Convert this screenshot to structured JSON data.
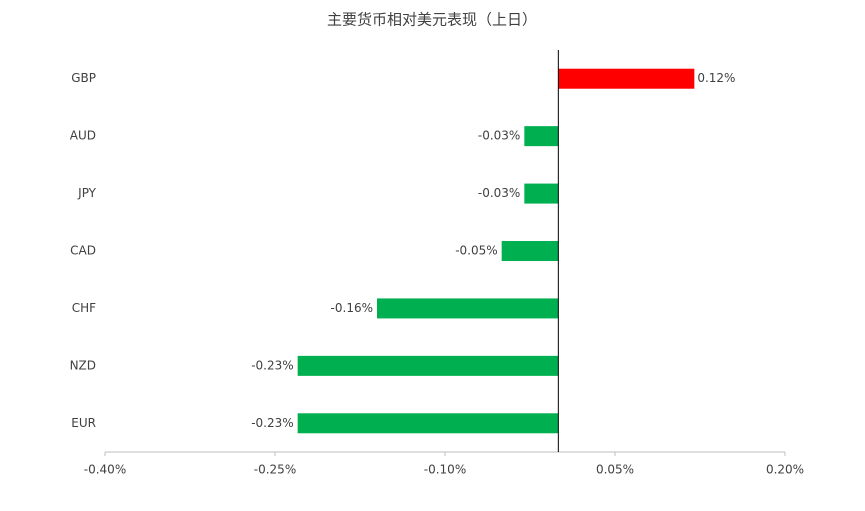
{
  "chart_data": {
    "type": "hbar",
    "title": "主要货币相对美元表现（上日）",
    "categories": [
      "GBP",
      "AUD",
      "JPY",
      "CAD",
      "CHF",
      "NZD",
      "EUR"
    ],
    "values": [
      0.12,
      -0.03,
      -0.03,
      -0.05,
      -0.16,
      -0.23,
      -0.23
    ],
    "value_labels": [
      "0.12%",
      "-0.03%",
      "-0.03%",
      "-0.05%",
      "-0.16%",
      "-0.23%",
      "-0.23%"
    ],
    "colors": [
      "#ff0000",
      "#00b050",
      "#00b050",
      "#00b050",
      "#00b050",
      "#00b050",
      "#00b050"
    ],
    "xlim": [
      -0.4,
      0.2
    ],
    "xticks": [
      {
        "value": -0.4,
        "label": "-0.40%"
      },
      {
        "value": -0.25,
        "label": "-0.25%"
      },
      {
        "value": -0.1,
        "label": "-0.10%"
      },
      {
        "value": 0.05,
        "label": "0.05%"
      },
      {
        "value": 0.2,
        "label": "0.20%"
      }
    ],
    "grid": false
  }
}
